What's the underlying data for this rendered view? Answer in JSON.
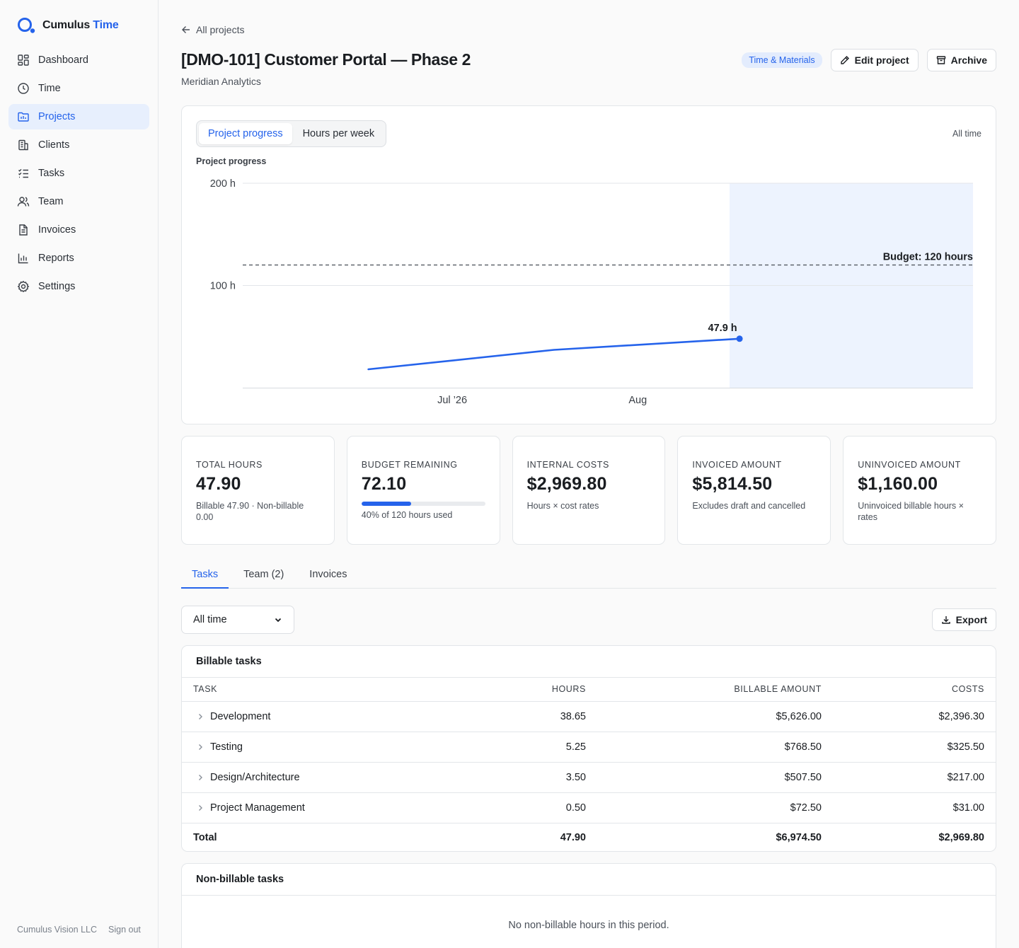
{
  "brand": {
    "name": "Cumulus",
    "accent": "Time",
    "color": "#2563eb"
  },
  "nav": [
    {
      "label": "Dashboard",
      "icon": "dashboard-icon",
      "active": false
    },
    {
      "label": "Time",
      "icon": "clock-icon",
      "active": false
    },
    {
      "label": "Projects",
      "icon": "projects-icon",
      "active": true
    },
    {
      "label": "Clients",
      "icon": "building-icon",
      "active": false
    },
    {
      "label": "Tasks",
      "icon": "checklist-icon",
      "active": false
    },
    {
      "label": "Team",
      "icon": "users-icon",
      "active": false
    },
    {
      "label": "Invoices",
      "icon": "document-icon",
      "active": false
    },
    {
      "label": "Reports",
      "icon": "bar-chart-icon",
      "active": false
    },
    {
      "label": "Settings",
      "icon": "gear-icon",
      "active": false
    }
  ],
  "footer": {
    "company": "Cumulus Vision LLC",
    "signout": "Sign out"
  },
  "header": {
    "back": "All projects",
    "title": "[DMO-101] Customer Portal — Phase 2",
    "client": "Meridian Analytics",
    "badge": "Time & Materials",
    "edit": "Edit project",
    "archive": "Archive"
  },
  "chart_tabs": [
    "Project progress",
    "Hours per week"
  ],
  "chart_range": "All time",
  "chart_data": {
    "type": "line",
    "title": "Project progress",
    "y_ticks": [
      "200 h",
      "100 h"
    ],
    "x_ticks": [
      "Jul ’26",
      "Aug"
    ],
    "ylim": [
      0,
      200
    ],
    "budget_label": "Budget: 120 hours",
    "budget": 120,
    "last_label": "47.9 h",
    "series": [
      {
        "x": [
          "2026-07-01",
          "2026-08-01",
          "2026-09-01"
        ],
        "values": [
          18,
          37,
          47.9
        ]
      }
    ],
    "grid": true
  },
  "stats": [
    {
      "label": "Total hours",
      "value": "47.90",
      "note": "Billable 47.90 · Non-billable 0.00"
    },
    {
      "label": "Budget remaining",
      "value": "72.10",
      "progress": 0.4,
      "note": "40% of 120 hours used"
    },
    {
      "label": "Internal costs",
      "value": "$2,969.80",
      "note": "Hours × cost rates"
    },
    {
      "label": "Invoiced amount",
      "value": "$5,814.50",
      "note": "Excludes draft and cancelled"
    },
    {
      "label": "Uninvoiced amount",
      "value": "$1,160.00",
      "note": "Uninvoiced billable hours × rates"
    }
  ],
  "tabs": [
    "Tasks",
    "Team (2)",
    "Invoices"
  ],
  "filter": {
    "value": "All time"
  },
  "export": "Export",
  "billable": {
    "title": "Billable tasks",
    "columns": [
      "Task",
      "Hours",
      "Billable amount",
      "Costs"
    ],
    "rows": [
      [
        "Development",
        "38.65",
        "$5,626.00",
        "$2,396.30"
      ],
      [
        "Testing",
        "5.25",
        "$768.50",
        "$325.50"
      ],
      [
        "Design/Architecture",
        "3.50",
        "$507.50",
        "$217.00"
      ],
      [
        "Project Management",
        "0.50",
        "$72.50",
        "$31.00"
      ]
    ],
    "total": [
      "Total",
      "47.90",
      "$6,974.50",
      "$2,969.80"
    ]
  },
  "nonbillable": {
    "title": "Non-billable tasks",
    "empty": "No non-billable hours in this period."
  }
}
